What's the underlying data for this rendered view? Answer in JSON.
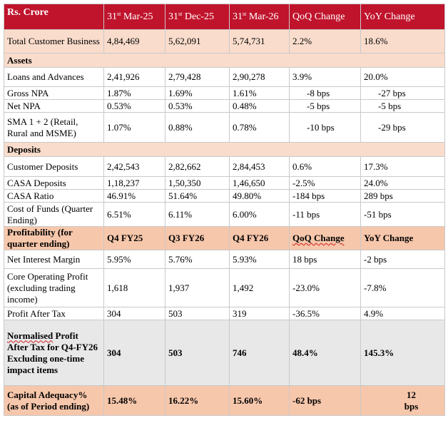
{
  "header": {
    "label": "Rs. Crore",
    "columns": [
      {
        "day": "31",
        "suffix": "st",
        "rest": " Mar-25"
      },
      {
        "day": "31",
        "suffix": "st",
        "rest": " Dec-25"
      },
      {
        "day": "31",
        "suffix": "st",
        "rest": " Mar-26"
      }
    ],
    "qoq_label": "QoQ Change",
    "yoy_label": "YoY Change"
  },
  "total_customer_business": {
    "label": "Total Customer Business",
    "values": [
      "4,84,469",
      "5,62,091",
      "5,74,731",
      "2.2%",
      "18.6%"
    ]
  },
  "assets": {
    "title": "Assets",
    "rows": [
      {
        "label": "Loans and Advances",
        "values": [
          "2,41,926",
          "2,79,428",
          "2,90,278",
          "3.9%",
          "20.0%"
        ]
      },
      {
        "label": "Gross NPA",
        "values": [
          "1.87%",
          "1.69%",
          "1.61%",
          "-8 bps",
          "-27 bps"
        ]
      },
      {
        "label": "Net NPA",
        "values": [
          "0.53%",
          "0.53%",
          "0.48%",
          "-5 bps",
          "-5 bps"
        ]
      },
      {
        "label": "SMA 1 + 2 (Retail, Rural and MSME)",
        "values": [
          "1.07%",
          "0.88%",
          "0.78%",
          "-10 bps",
          "-29 bps"
        ]
      }
    ]
  },
  "deposits": {
    "title": "Deposits",
    "rows": [
      {
        "label": "Customer Deposits",
        "values": [
          "2,42,543",
          "2,82,662",
          "2,84,453",
          "0.6%",
          "17.3%"
        ]
      },
      {
        "label": "CASA Deposits",
        "values": [
          "1,18,237",
          "1,50,350",
          "1,46,650",
          "-2.5%",
          "24.0%"
        ]
      },
      {
        "label": "CASA Ratio",
        "values": [
          "46.91%",
          "51.64%",
          "49.80%",
          "-184 bps",
          "289 bps"
        ]
      },
      {
        "label": "Cost of Funds (Quarter Ending)",
        "values": [
          "6.51%",
          "6.11%",
          "6.00%",
          "-11 bps",
          "-51 bps"
        ]
      }
    ]
  },
  "profitability": {
    "title": "Profitability (for quarter ending)",
    "columns": [
      "Q4 FY25",
      "Q3 FY26",
      "Q4 FY26",
      "QoQ Change",
      "YoY Change"
    ],
    "rows": [
      {
        "label": "Net Interest Margin",
        "values": [
          "5.95%",
          "5.76%",
          "5.93%",
          "18 bps",
          "-2 bps"
        ]
      },
      {
        "label": "Core Operating Profit (excluding trading income)",
        "values": [
          "1,618",
          "1,937",
          "1,492",
          "-23.0%",
          "-7.8%"
        ]
      },
      {
        "label": "Profit After Tax",
        "values": [
          "304",
          "503",
          "319",
          "-36.5%",
          "4.9%"
        ]
      }
    ]
  },
  "normalised": {
    "label_word": "Normalised",
    "label_rest": " Profit After Tax for Q4-FY26 Excluding one-time impact items",
    "values": [
      "304",
      "503",
      "746",
      "48.4%",
      "145.3%"
    ]
  },
  "capital": {
    "label": "Capital Adequacy% (as of Period ending)",
    "values": [
      "15.48%",
      "16.22%",
      "15.60%",
      "-62 bps",
      "12 bps"
    ]
  }
}
